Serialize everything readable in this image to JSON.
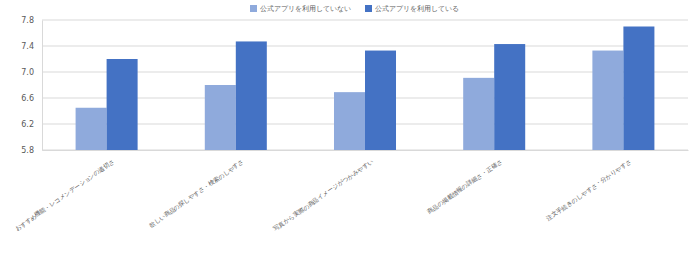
{
  "chart_data": {
    "type": "bar",
    "categories": [
      "おすすめ機能・レコメンデーションの適切さ",
      "欲しい商品の探しやすさ・検索のしやすさ",
      "写真から実際の商品イメージがつかみやすい",
      "商品の掲載情報の詳細さ・正確さ",
      "注文手続きのしやすさ・分かりやすさ"
    ],
    "series": [
      {
        "name": "公式アプリを利用していない",
        "color": "#8faadc",
        "values": [
          6.45,
          6.8,
          6.69,
          6.91,
          7.33
        ]
      },
      {
        "name": "公式アプリを利用している",
        "color": "#4472c4",
        "values": [
          7.2,
          7.47,
          7.33,
          7.43,
          7.7
        ]
      }
    ],
    "ylim": [
      5.8,
      7.8
    ],
    "yticks": [
      5.8,
      6.2,
      6.6,
      {
        "value": 7,
        "label": "7.0"
      },
      7.4,
      7.8
    ],
    "grid": true,
    "legend": "top"
  }
}
